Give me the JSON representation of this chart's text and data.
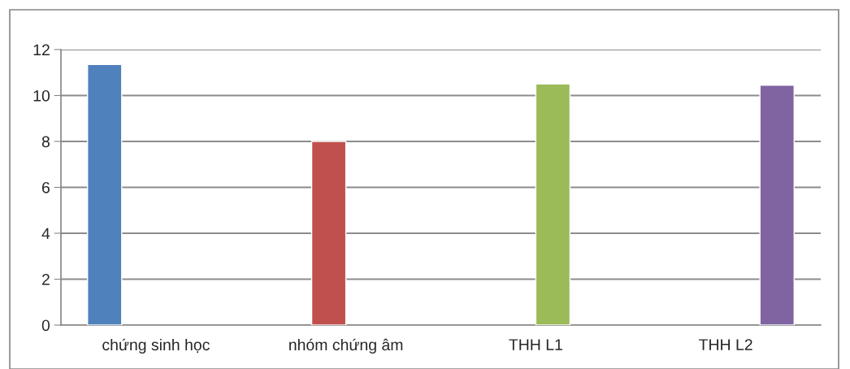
{
  "chart_data": {
    "type": "bar",
    "categories": [
      "chứng sinh học",
      "nhóm chứng âm",
      "THH L1",
      "THH L2"
    ],
    "series": [
      {
        "color": "#4f81bd",
        "values": [
          11.35,
          null,
          null,
          null
        ]
      },
      {
        "color": "#c0504d",
        "values": [
          null,
          8.0,
          null,
          null
        ]
      },
      {
        "color": "#9bbb59",
        "values": [
          null,
          null,
          10.5,
          null
        ]
      },
      {
        "color": "#8064a2",
        "values": [
          null,
          null,
          null,
          10.45
        ]
      }
    ],
    "ylim": [
      0,
      12
    ],
    "yticks": [
      0,
      2,
      4,
      6,
      8,
      10,
      12
    ],
    "grid": "y",
    "legend": false
  }
}
